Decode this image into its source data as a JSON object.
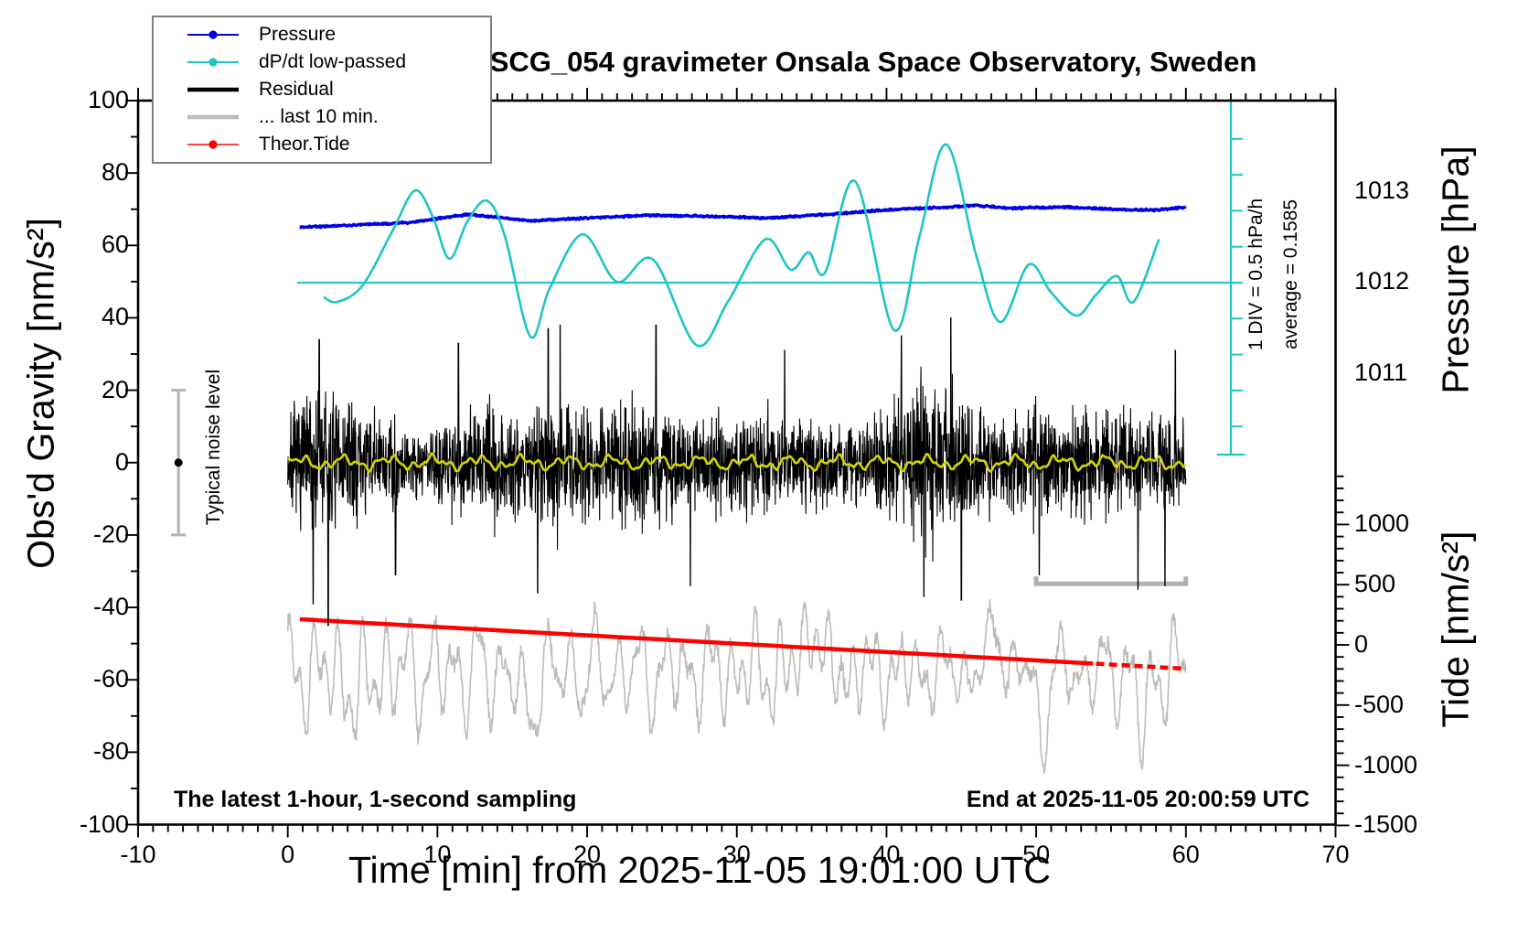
{
  "chart_data": {
    "type": "line",
    "title": "SCG_054 gravimeter Onsala Space Observatory, Sweden",
    "xlabel": "Time [min] from 2025-11-05 19:01:00 UTC",
    "x_axis": {
      "min": -10,
      "max": 70,
      "ticks": [
        -10,
        0,
        10,
        20,
        30,
        40,
        50,
        60,
        70
      ],
      "minor_step": 1
    },
    "left_axis": {
      "label": "Obs'd Gravity [nm/s²]",
      "min": -100,
      "max": 100,
      "ticks": [
        100,
        80,
        60,
        40,
        20,
        0,
        -20,
        -40,
        -60,
        -80,
        -100
      ],
      "minor_step": 10
    },
    "right_pressure_axis": {
      "label": "Pressure [hPa]",
      "min": 1006.04,
      "max": 1013.99,
      "ticks": [
        1013,
        1012,
        1011
      ],
      "minor_step": 0.1
    },
    "right_tide_axis": {
      "label": "Tide [nm/s²]",
      "min": -1493,
      "max": 4521,
      "ticks": [
        1000,
        500,
        0,
        -500,
        -1000,
        -1500
      ],
      "minor_step": 100
    },
    "series": {
      "pressure": {
        "name": "Pressure",
        "color": "#0000e6",
        "unit": "hPa",
        "noise": 0.013,
        "points": [
          [
            0.8,
            1012.6
          ],
          [
            4,
            1012.62
          ],
          [
            8,
            1012.65
          ],
          [
            12,
            1012.74
          ],
          [
            14,
            1012.71
          ],
          [
            16,
            1012.67
          ],
          [
            20,
            1012.7
          ],
          [
            24,
            1012.73
          ],
          [
            28,
            1012.72
          ],
          [
            32,
            1012.7
          ],
          [
            36,
            1012.74
          ],
          [
            40,
            1012.79
          ],
          [
            44,
            1012.82
          ],
          [
            46,
            1012.84
          ],
          [
            48,
            1012.81
          ],
          [
            52,
            1012.82
          ],
          [
            56,
            1012.79
          ],
          [
            58,
            1012.79
          ],
          [
            60,
            1012.82
          ]
        ]
      },
      "dpdt": {
        "name": "dP/dt low-passed",
        "color": "#1fc4c4",
        "unit": "hPa/h",
        "average": 0.1585,
        "div_value": 0.5,
        "points": [
          [
            2.4,
            -0.04
          ],
          [
            3.3,
            -0.11
          ],
          [
            5.0,
            0.12
          ],
          [
            7.0,
            0.88
          ],
          [
            8.5,
            1.44
          ],
          [
            9.7,
            1.07
          ],
          [
            10.8,
            0.49
          ],
          [
            12.0,
            1.01
          ],
          [
            13.3,
            1.3
          ],
          [
            14.5,
            0.81
          ],
          [
            16.2,
            -0.59
          ],
          [
            17.5,
            0.08
          ],
          [
            19.7,
            0.83
          ],
          [
            22.0,
            0.17
          ],
          [
            24.4,
            0.48
          ],
          [
            27.3,
            -0.71
          ],
          [
            29.4,
            -0.11
          ],
          [
            31.9,
            0.76
          ],
          [
            33.6,
            0.34
          ],
          [
            34.8,
            0.58
          ],
          [
            35.9,
            0.3
          ],
          [
            37.9,
            1.57
          ],
          [
            40.5,
            -0.5
          ],
          [
            42.2,
            0.8
          ],
          [
            44.0,
            2.08
          ],
          [
            46.0,
            0.53
          ],
          [
            47.6,
            -0.39
          ],
          [
            49.5,
            0.41
          ],
          [
            51.0,
            0.02
          ],
          [
            52.7,
            -0.3
          ],
          [
            54.0,
            -0.01
          ],
          [
            55.4,
            0.25
          ],
          [
            56.5,
            -0.11
          ],
          [
            58.2,
            0.76
          ]
        ]
      },
      "residual": {
        "name": "Residual",
        "color": "#000000",
        "unit": "nm/s²",
        "mean": 0,
        "sigma": 9,
        "seed": 7,
        "spikes": [
          [
            1.7,
            -39
          ],
          [
            2.1,
            34
          ],
          [
            2.7,
            -45
          ],
          [
            7.2,
            -31
          ],
          [
            11.4,
            33
          ],
          [
            16.7,
            -36
          ],
          [
            17.4,
            37
          ],
          [
            18.2,
            38
          ],
          [
            24.6,
            38
          ],
          [
            26.9,
            -34
          ],
          [
            33.2,
            31
          ],
          [
            41.0,
            35
          ],
          [
            42.5,
            -37
          ],
          [
            44.3,
            40
          ],
          [
            45.0,
            -38
          ],
          [
            50.2,
            -31
          ],
          [
            56.8,
            -35
          ],
          [
            58.6,
            -34
          ],
          [
            59.3,
            31
          ]
        ]
      },
      "residual_smooth": {
        "name": "Residual low-passed",
        "color": "#d4d400",
        "amplitude": 2
      },
      "last10": {
        "name": "... last 10 min.",
        "color": "#bcbcbc",
        "unit": "nm/s² (tide scale)",
        "center": -220,
        "seed": 12
      },
      "theor_tide": {
        "name": "Theor.Tide",
        "color": "#ff0000",
        "unit": "nm/s² (tide scale)",
        "points": [
          [
            0.8,
            213
          ],
          [
            15,
            114
          ],
          [
            30,
            10
          ],
          [
            45,
            -94
          ],
          [
            60,
            -198
          ]
        ]
      }
    },
    "annotations": {
      "sampling_note": "The latest 1-hour, 1-second sampling",
      "end_note": "End at 2025-11-05 20:00:59 UTC",
      "noise_label": "Typical noise level",
      "div_label": "1 DIV = 0.5 hPa/h",
      "avg_label": "average = 0.1585",
      "noise_bar": {
        "t": -7.3,
        "value": 0,
        "halfwidth": 20
      },
      "window_bar": {
        "t0": 50,
        "t1": 60,
        "gravity": -33.5
      }
    }
  },
  "legend": {
    "items": [
      {
        "label": "Pressure",
        "color": "#0000e6",
        "style": "line-dot"
      },
      {
        "label": "dP/dt low-passed",
        "color": "#1fc4c4",
        "style": "line-dot"
      },
      {
        "label": "Residual",
        "color": "#000000",
        "style": "thick-line"
      },
      {
        "label": "... last 10 min.",
        "color": "#bcbcbc",
        "style": "thick-line"
      },
      {
        "label": "Theor.Tide",
        "color": "#ff0000",
        "style": "line-dot"
      }
    ]
  }
}
